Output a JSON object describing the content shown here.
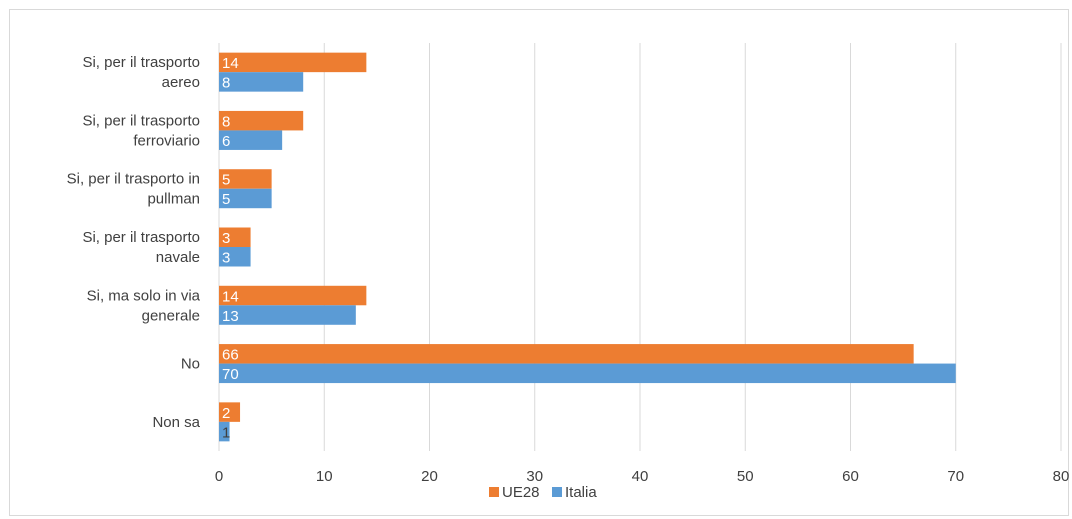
{
  "chart_data": {
    "type": "bar",
    "orientation": "horizontal",
    "categories": [
      [
        "Si, per il trasporto",
        "aereo"
      ],
      [
        "Si, per il trasporto",
        "ferroviario"
      ],
      [
        "Si, per il trasporto in",
        "pullman"
      ],
      [
        "Si, per il trasporto",
        "navale"
      ],
      [
        "Si, ma solo in via",
        "generale"
      ],
      [
        "No"
      ],
      [
        "Non sa"
      ]
    ],
    "series": [
      {
        "name": "UE28",
        "color": "#ed7d31",
        "values": [
          14,
          8,
          5,
          3,
          14,
          66,
          2
        ]
      },
      {
        "name": "Italia",
        "color": "#5b9bd5",
        "values": [
          8,
          6,
          5,
          3,
          13,
          70,
          1
        ]
      }
    ],
    "xlim": [
      0,
      80
    ],
    "xticks": [
      0,
      10,
      20,
      30,
      40,
      50,
      60,
      70,
      80
    ],
    "grid": true,
    "legend": "bottom"
  }
}
